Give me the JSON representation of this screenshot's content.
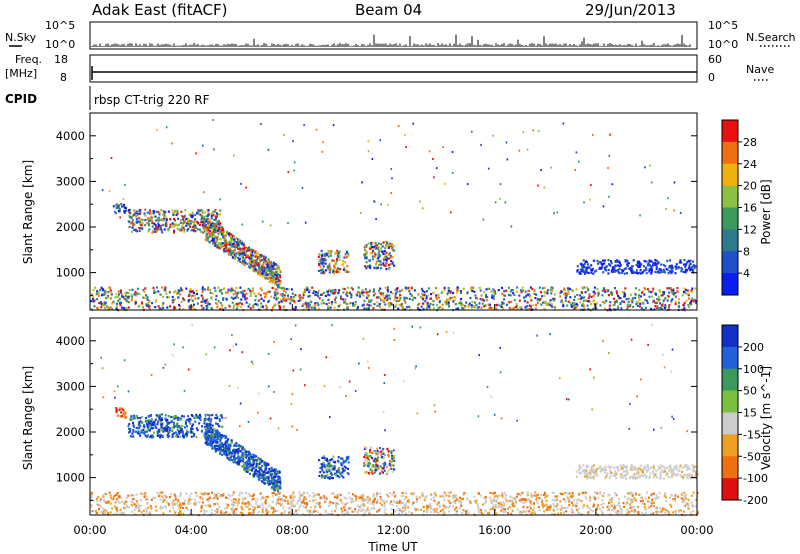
{
  "header": {
    "radar": "Adak East (fitACF)",
    "beam": "Beam 04",
    "date": "29/Jun/2013"
  },
  "info_panel": {
    "nsky_label": "N.Sky",
    "nsearch_label": "N.Search",
    "freq_label_1": "Freq.",
    "freq_label_2": "[MHz]",
    "nave_label": "Nave",
    "cpid_label": "CPID",
    "cpid_text": "rbsp CT-trig 220 RF",
    "left_ticks_top": [
      "10^5",
      "10^0"
    ],
    "right_ticks_top": [
      "10^5",
      "10^0"
    ],
    "left_ticks_mid": [
      "18",
      "8"
    ],
    "right_ticks_mid": [
      "60",
      "0"
    ]
  },
  "chart_data": [
    {
      "type": "heatmap",
      "title": "",
      "xlabel": "Time UT",
      "ylabel": "Slant Range [km]",
      "x_ticks": [
        "00:00",
        "04:00",
        "08:00",
        "12:00",
        "16:00",
        "20:00",
        "00:00"
      ],
      "x_range_hours": [
        0,
        24
      ],
      "y_ticks": [
        1000,
        2000,
        3000,
        4000
      ],
      "y_range_km": [
        180,
        4500
      ],
      "colorbar": {
        "label": "Power [dB]",
        "ticks": [
          "4",
          "8",
          "12",
          "16",
          "20",
          "24",
          "28"
        ],
        "colors": [
          "#0a1ef0",
          "#2050c8",
          "#2e7a8c",
          "#3a9a5c",
          "#8cc040",
          "#f0b010",
          "#f07010",
          "#e81010"
        ]
      },
      "features": [
        {
          "name": "scatter-band-a",
          "t_start": 0.9,
          "t_end": 1.4,
          "r_start": 2300,
          "r_end": 2550,
          "value": "low-mid"
        },
        {
          "name": "scatter-band-b",
          "t_start": 1.5,
          "t_end": 5.2,
          "r_start": 1900,
          "r_end": 2400,
          "value": "mixed"
        },
        {
          "name": "scatter-band-c",
          "t_start": 4.5,
          "t_end": 7.5,
          "r_start": 900,
          "r_end": 2000,
          "value": "mixed"
        },
        {
          "name": "scatter-band-d",
          "t_start": 9.0,
          "t_end": 10.2,
          "r_start": 1000,
          "r_end": 1500,
          "value": "mixed"
        },
        {
          "name": "scatter-band-e",
          "t_start": 10.8,
          "t_end": 12.0,
          "r_start": 1100,
          "r_end": 1700,
          "value": "mixed"
        },
        {
          "name": "scatter-band-f",
          "t_start": 19.2,
          "t_end": 24.0,
          "r_start": 1000,
          "r_end": 1300,
          "value": "low"
        },
        {
          "name": "ground-scatter",
          "t_start": 0,
          "t_end": 24,
          "r_start": 200,
          "r_end": 700,
          "value": "mixed"
        }
      ]
    },
    {
      "type": "heatmap",
      "title": "",
      "xlabel": "Time UT",
      "ylabel": "Slant Range [km]",
      "x_ticks": [
        "00:00",
        "04:00",
        "08:00",
        "12:00",
        "16:00",
        "20:00",
        "00:00"
      ],
      "x_range_hours": [
        0,
        24
      ],
      "y_ticks": [
        1000,
        2000,
        3000,
        4000
      ],
      "y_range_km": [
        180,
        4500
      ],
      "colorbar": {
        "label": "Velocity [m s^-1]",
        "ticks": [
          "200",
          "100",
          "50",
          "15",
          "-15",
          "-50",
          "-100",
          "-200"
        ],
        "colors": [
          "#1030c8",
          "#2060d8",
          "#3a9a5c",
          "#7cc040",
          "#cccccc",
          "#f0a020",
          "#f07010",
          "#e01010"
        ]
      },
      "features": [
        {
          "name": "vel-band-a",
          "t_start": 0.9,
          "t_end": 1.4,
          "r_start": 2300,
          "r_end": 2550,
          "value": "negative"
        },
        {
          "name": "vel-band-b",
          "t_start": 1.5,
          "t_end": 5.2,
          "r_start": 1900,
          "r_end": 2400,
          "value": "positive"
        },
        {
          "name": "vel-band-c",
          "t_start": 4.5,
          "t_end": 7.5,
          "r_start": 900,
          "r_end": 2000,
          "value": "positive"
        },
        {
          "name": "vel-band-d",
          "t_start": 9.0,
          "t_end": 10.2,
          "r_start": 1000,
          "r_end": 1500,
          "value": "positive"
        },
        {
          "name": "vel-band-e",
          "t_start": 10.8,
          "t_end": 12.0,
          "r_start": 1100,
          "r_end": 1700,
          "value": "mixed"
        },
        {
          "name": "vel-band-f",
          "t_start": 19.2,
          "t_end": 24.0,
          "r_start": 1000,
          "r_end": 1300,
          "value": "ground"
        },
        {
          "name": "vel-ground",
          "t_start": 0,
          "t_end": 24,
          "r_start": 200,
          "r_end": 700,
          "value": "ground-negative"
        }
      ]
    }
  ]
}
